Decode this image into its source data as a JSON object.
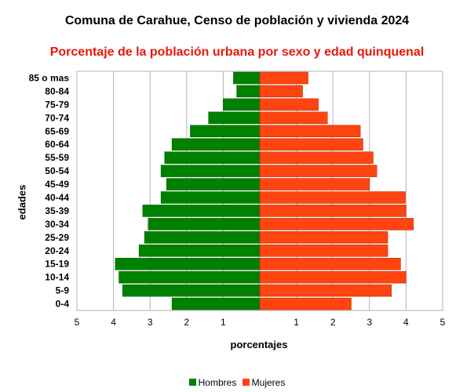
{
  "chart_data": {
    "type": "bar",
    "orientation": "horizontal",
    "layout": "population-pyramid",
    "title": "Comuna de Carahue, Censo de población y vivienda 2024",
    "subtitle": "Porcentaje de la población urbana por sexo y edad quinquenal",
    "xlabel": "porcentajes",
    "ylabel": "edades",
    "xlim": [
      -5,
      5
    ],
    "x_ticks": [
      -5,
      -4,
      -3,
      -2,
      -1,
      0,
      1,
      2,
      3,
      4,
      5
    ],
    "x_tick_labels": [
      "5",
      "4",
      "3",
      "2",
      "1",
      "",
      "1",
      "2",
      "3",
      "4",
      "5"
    ],
    "grid": "vertical",
    "legend_position": "bottom",
    "categories": [
      "85 o mas",
      "80-84",
      "75-79",
      "70-74",
      "65-69",
      "60-64",
      "55-59",
      "50-54",
      "45-49",
      "40-44",
      "35-39",
      "30-34",
      "25-29",
      "20-24",
      "15-19",
      "10-14",
      "5-9",
      "0-4"
    ],
    "series": [
      {
        "name": "Hombres",
        "color": "#008000",
        "values": [
          0.72,
          0.63,
          1.0,
          1.4,
          1.9,
          2.4,
          2.6,
          2.7,
          2.55,
          2.7,
          3.2,
          3.05,
          3.15,
          3.3,
          3.95,
          3.85,
          3.75,
          2.4
        ]
      },
      {
        "name": "Mujeres",
        "color": "#ff4411",
        "values": [
          1.32,
          1.17,
          1.6,
          1.85,
          2.75,
          2.82,
          3.1,
          3.2,
          3.0,
          3.98,
          4.0,
          4.2,
          3.5,
          3.5,
          3.85,
          4.0,
          3.6,
          2.5
        ]
      }
    ]
  }
}
